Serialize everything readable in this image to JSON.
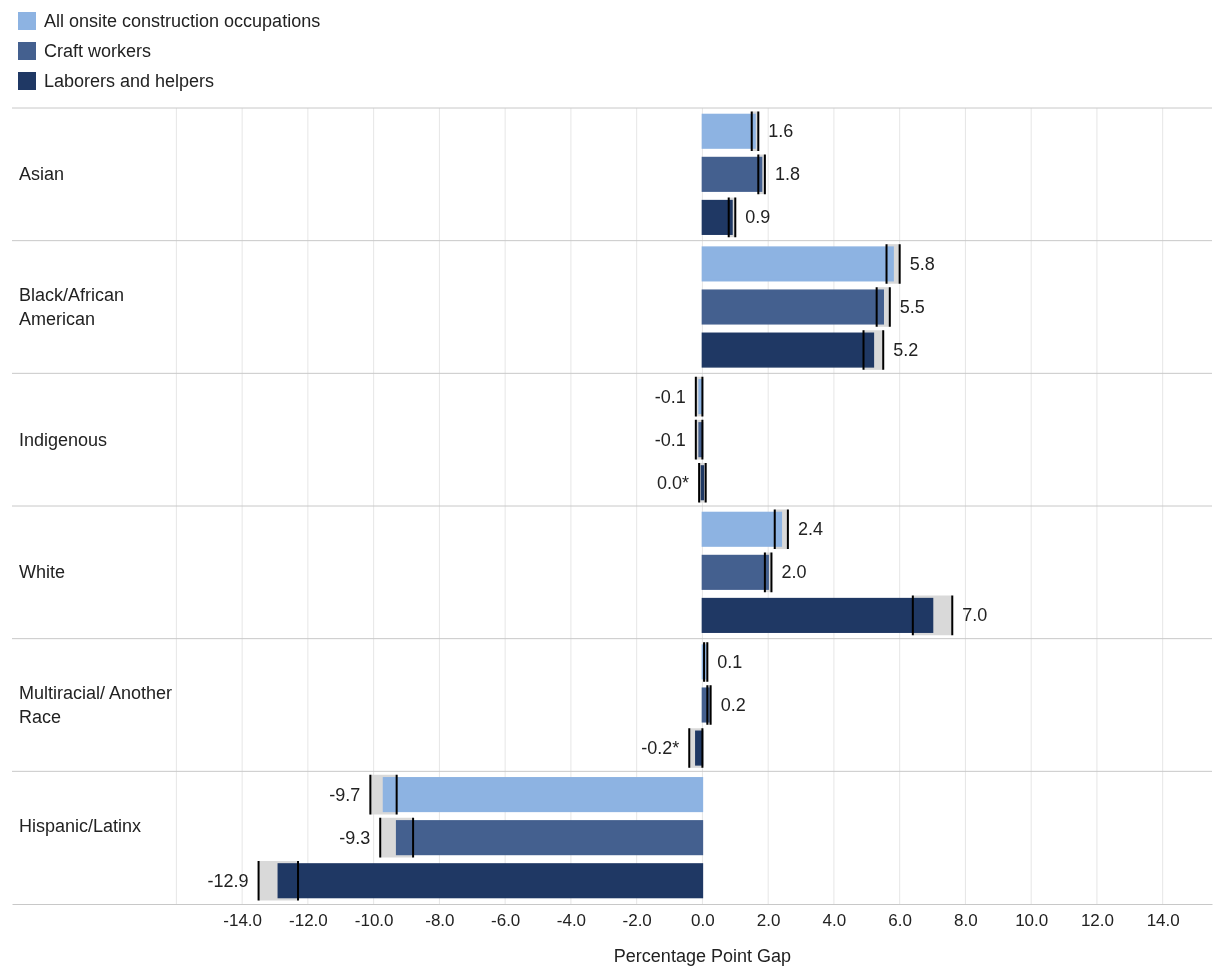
{
  "chart_data": {
    "type": "bar",
    "orientation": "horizontal",
    "xlabel": "Percentage Point Gap",
    "categories": [
      "Asian",
      "Black/African American",
      "Indigenous",
      "White",
      "Multiracial/ Another Race",
      "Hispanic/Latinx"
    ],
    "series": [
      {
        "name": "All onsite construction occupations",
        "color": "#8db3e2",
        "values": [
          1.6,
          5.8,
          -0.1,
          2.4,
          0.1,
          -9.7
        ],
        "errors": [
          0.1,
          0.2,
          0.1,
          0.2,
          0.05,
          0.4
        ],
        "value_labels": [
          "1.6",
          "5.8",
          "-0.1",
          "2.4",
          "0.1",
          "-9.7"
        ]
      },
      {
        "name": "Craft workers",
        "color": "#44608f",
        "values": [
          1.8,
          5.5,
          -0.1,
          2.0,
          0.2,
          -9.3
        ],
        "errors": [
          0.1,
          0.2,
          0.1,
          0.1,
          0.05,
          0.5
        ],
        "value_labels": [
          "1.8",
          "5.5",
          "-0.1",
          "2.0",
          "0.2",
          "-9.3"
        ]
      },
      {
        "name": "Laborers and helpers",
        "color": "#1f3864",
        "values": [
          0.9,
          5.2,
          0.0,
          7.0,
          -0.2,
          -12.9
        ],
        "errors": [
          0.1,
          0.3,
          0.1,
          0.6,
          0.2,
          0.6
        ],
        "value_labels": [
          "0.9",
          "5.2",
          "0.0*",
          "7.0",
          "-0.2*",
          "-12.9"
        ]
      }
    ],
    "xlim": [
      -21,
      15.5
    ],
    "xticks": [
      {
        "value": -16,
        "label": null
      },
      {
        "value": -14,
        "label": "-14.0"
      },
      {
        "value": -12,
        "label": "-12.0"
      },
      {
        "value": -10,
        "label": "-10.0"
      },
      {
        "value": -8,
        "label": "-8.0"
      },
      {
        "value": -6,
        "label": "-6.0"
      },
      {
        "value": -4,
        "label": "-4.0"
      },
      {
        "value": -2,
        "label": "-2.0"
      },
      {
        "value": 0,
        "label": "0.0"
      },
      {
        "value": 2,
        "label": "2.0"
      },
      {
        "value": 4,
        "label": "4.0"
      },
      {
        "value": 6,
        "label": "6.0"
      },
      {
        "value": 8,
        "label": "8.0"
      },
      {
        "value": 10,
        "label": "10.0"
      },
      {
        "value": 12,
        "label": "12.0"
      },
      {
        "value": 14,
        "label": "14.0"
      }
    ],
    "grid": "x",
    "legend": "top left"
  }
}
